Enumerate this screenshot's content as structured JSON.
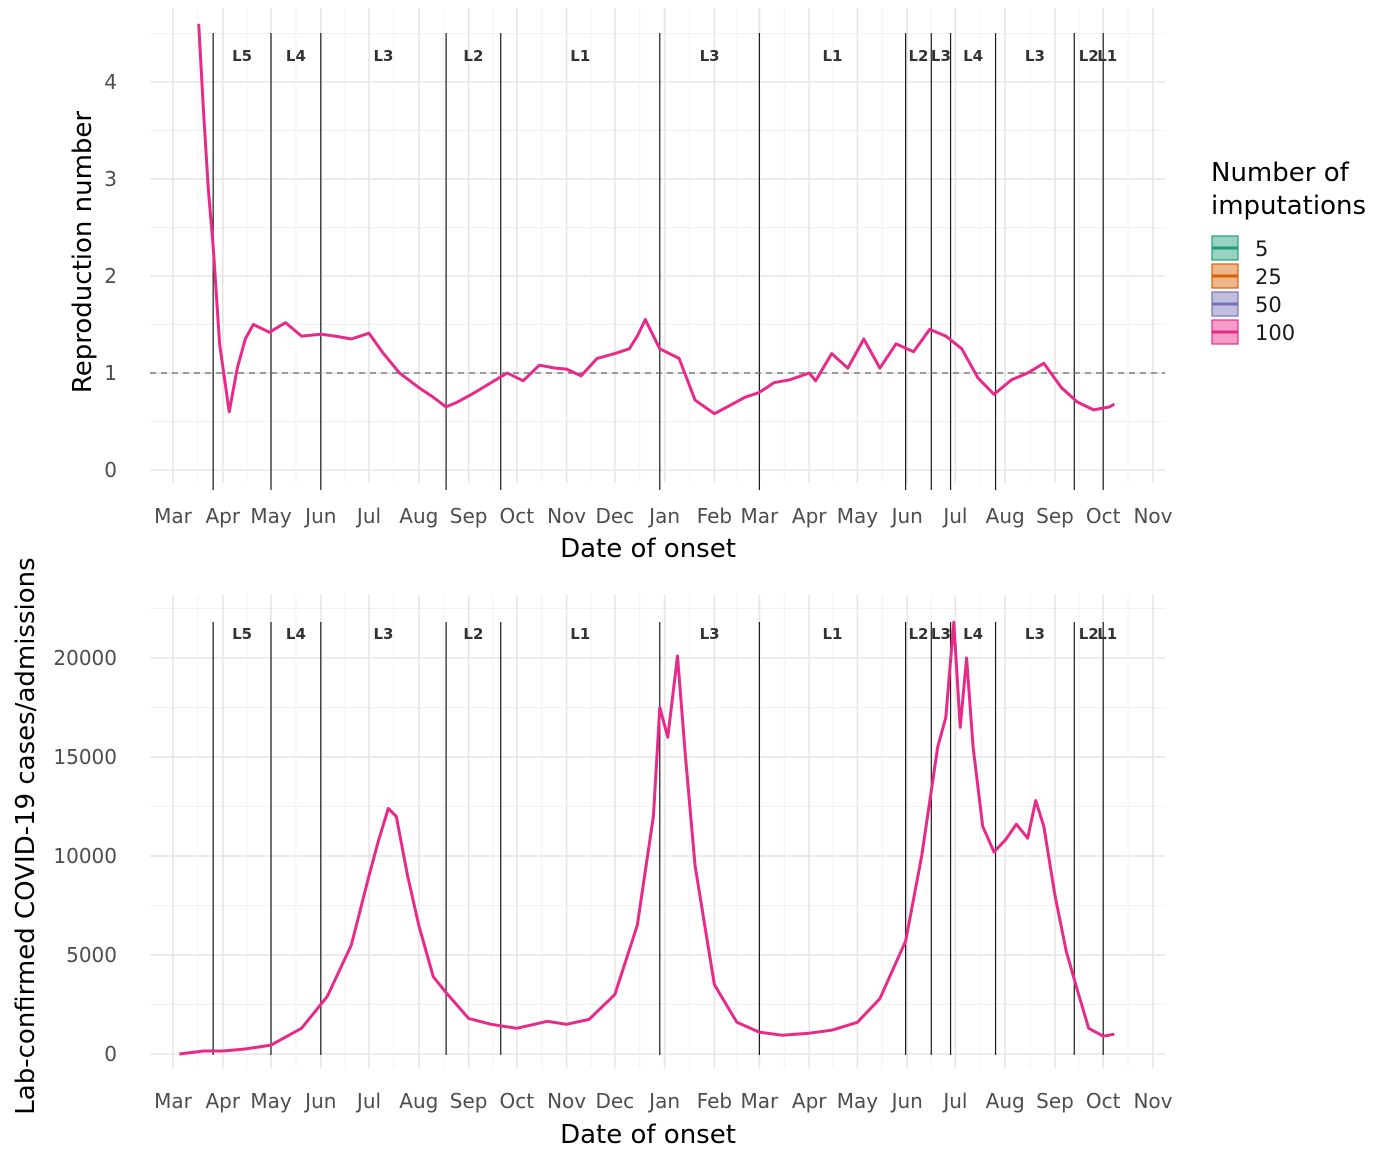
{
  "legend": {
    "title_line1": "Number of",
    "title_line2": "imputations",
    "items": [
      {
        "label": "5",
        "color": "#1b9e77"
      },
      {
        "label": "25",
        "color": "#d95f02"
      },
      {
        "label": "50",
        "color": "#7570b3"
      },
      {
        "label": "100",
        "color": "#e7298a"
      }
    ]
  },
  "chart_data": [
    {
      "type": "line",
      "xlabel": "Date of onset",
      "ylabel": "Reproduction number",
      "x_ticks": [
        "Mar",
        "Apr",
        "May",
        "Jun",
        "Jul",
        "Aug",
        "Sep",
        "Oct",
        "Nov",
        "Dec",
        "Jan",
        "Feb",
        "Mar",
        "Apr",
        "May",
        "Jun",
        "Jul",
        "Aug",
        "Sep",
        "Oct",
        "Nov"
      ],
      "y_ticks": [
        "0",
        "1",
        "2",
        "3",
        "4"
      ],
      "ylim": [
        -0.1,
        4.6
      ],
      "reference_line": {
        "y": 1,
        "style": "dashed"
      },
      "regions": [
        {
          "label": "L5",
          "start": "2020-03-26",
          "end": "2020-05-01"
        },
        {
          "label": "L4",
          "start": "2020-05-01",
          "end": "2020-06-01"
        },
        {
          "label": "L3",
          "start": "2020-06-01",
          "end": "2020-08-18"
        },
        {
          "label": "L2",
          "start": "2020-08-18",
          "end": "2020-09-21"
        },
        {
          "label": "L1",
          "start": "2020-09-21",
          "end": "2020-12-29"
        },
        {
          "label": "L3",
          "start": "2020-12-29",
          "end": "2021-03-01"
        },
        {
          "label": "L1",
          "start": "2021-03-01",
          "end": "2021-05-31"
        },
        {
          "label": "L2",
          "start": "2021-05-31",
          "end": "2021-06-16"
        },
        {
          "label": "L3",
          "start": "2021-06-16",
          "end": "2021-06-28"
        },
        {
          "label": "L4",
          "start": "2021-06-28",
          "end": "2021-07-26"
        },
        {
          "label": "L3",
          "start": "2021-07-26",
          "end": "2021-09-13"
        },
        {
          "label": "L2",
          "start": "2021-09-13",
          "end": "2021-10-01"
        },
        {
          "label": "L1",
          "start": "2021-10-01",
          "end": "2021-10-06"
        }
      ],
      "series": [
        {
          "name": "100",
          "color": "#e7298a",
          "x": [
            "2020-03-17",
            "2020-03-20",
            "2020-03-23",
            "2020-03-26",
            "2020-03-30",
            "2020-04-05",
            "2020-04-10",
            "2020-04-15",
            "2020-04-20",
            "2020-04-30",
            "2020-05-10",
            "2020-05-20",
            "2020-06-01",
            "2020-06-10",
            "2020-06-20",
            "2020-07-01",
            "2020-07-10",
            "2020-07-20",
            "2020-08-01",
            "2020-08-10",
            "2020-08-18",
            "2020-08-25",
            "2020-09-05",
            "2020-09-15",
            "2020-09-25",
            "2020-10-05",
            "2020-10-15",
            "2020-10-25",
            "2020-11-01",
            "2020-11-10",
            "2020-11-20",
            "2020-12-01",
            "2020-12-10",
            "2020-12-15",
            "2020-12-20",
            "2020-12-29",
            "2021-01-10",
            "2021-01-20",
            "2021-02-01",
            "2021-02-10",
            "2021-02-20",
            "2021-03-01",
            "2021-03-10",
            "2021-03-20",
            "2021-04-01",
            "2021-04-05",
            "2021-04-15",
            "2021-04-25",
            "2021-05-05",
            "2021-05-15",
            "2021-05-25",
            "2021-06-05",
            "2021-06-15",
            "2021-06-25",
            "2021-07-05",
            "2021-07-15",
            "2021-07-25",
            "2021-08-05",
            "2021-08-15",
            "2021-08-25",
            "2021-09-05",
            "2021-09-15",
            "2021-09-25",
            "2021-10-05",
            "2021-10-08"
          ],
          "y": [
            4.6,
            3.7,
            2.9,
            2.3,
            1.3,
            0.6,
            1.05,
            1.35,
            1.5,
            1.42,
            1.52,
            1.38,
            1.4,
            1.38,
            1.35,
            1.41,
            1.2,
            1.0,
            0.85,
            0.75,
            0.65,
            0.7,
            0.8,
            0.9,
            1.0,
            0.92,
            1.08,
            1.05,
            1.04,
            0.97,
            1.15,
            1.2,
            1.25,
            1.38,
            1.55,
            1.25,
            1.15,
            0.72,
            0.58,
            0.66,
            0.75,
            0.8,
            0.9,
            0.93,
            1.0,
            0.92,
            1.2,
            1.05,
            1.35,
            1.05,
            1.3,
            1.22,
            1.45,
            1.38,
            1.25,
            0.95,
            0.78,
            0.93,
            1.0,
            1.1,
            0.85,
            0.7,
            0.62,
            0.65,
            0.68
          ]
        }
      ]
    },
    {
      "type": "line",
      "xlabel": "Date of onset",
      "ylabel": "Lab-confirmed COVID-19 cases/admissions",
      "x_ticks": [
        "Mar",
        "Apr",
        "May",
        "Jun",
        "Jul",
        "Aug",
        "Sep",
        "Oct",
        "Nov",
        "Dec",
        "Jan",
        "Feb",
        "Mar",
        "Apr",
        "May",
        "Jun",
        "Jul",
        "Aug",
        "Sep",
        "Oct",
        "Nov"
      ],
      "y_ticks": [
        "0",
        "5000",
        "10000",
        "15000",
        "20000"
      ],
      "ylim": [
        -500,
        23000
      ],
      "regions": [
        {
          "label": "L5",
          "start": "2020-03-26",
          "end": "2020-05-01"
        },
        {
          "label": "L4",
          "start": "2020-05-01",
          "end": "2020-06-01"
        },
        {
          "label": "L3",
          "start": "2020-06-01",
          "end": "2020-08-18"
        },
        {
          "label": "L2",
          "start": "2020-08-18",
          "end": "2020-09-21"
        },
        {
          "label": "L1",
          "start": "2020-09-21",
          "end": "2020-12-29"
        },
        {
          "label": "L3",
          "start": "2020-12-29",
          "end": "2021-03-01"
        },
        {
          "label": "L1",
          "start": "2021-03-01",
          "end": "2021-05-31"
        },
        {
          "label": "L2",
          "start": "2021-05-31",
          "end": "2021-06-16"
        },
        {
          "label": "L3",
          "start": "2021-06-16",
          "end": "2021-06-28"
        },
        {
          "label": "L4",
          "start": "2021-06-28",
          "end": "2021-07-26"
        },
        {
          "label": "L3",
          "start": "2021-07-26",
          "end": "2021-09-13"
        },
        {
          "label": "L2",
          "start": "2021-09-13",
          "end": "2021-10-01"
        },
        {
          "label": "L1",
          "start": "2021-10-01",
          "end": "2021-10-06"
        }
      ],
      "series": [
        {
          "name": "100",
          "color": "#e7298a",
          "x": [
            "2020-03-05",
            "2020-03-20",
            "2020-04-01",
            "2020-04-15",
            "2020-05-01",
            "2020-05-20",
            "2020-06-05",
            "2020-06-20",
            "2020-07-01",
            "2020-07-07",
            "2020-07-13",
            "2020-07-18",
            "2020-07-25",
            "2020-08-01",
            "2020-08-10",
            "2020-08-18",
            "2020-09-01",
            "2020-09-15",
            "2020-10-01",
            "2020-10-20",
            "2020-11-01",
            "2020-11-15",
            "2020-12-01",
            "2020-12-15",
            "2020-12-25",
            "2020-12-29",
            "2021-01-03",
            "2021-01-09",
            "2021-01-14",
            "2021-01-20",
            "2021-02-01",
            "2021-02-15",
            "2021-03-01",
            "2021-03-15",
            "2021-04-01",
            "2021-04-15",
            "2021-05-01",
            "2021-05-15",
            "2021-05-31",
            "2021-06-10",
            "2021-06-20",
            "2021-06-25",
            "2021-06-30",
            "2021-07-04",
            "2021-07-08",
            "2021-07-12",
            "2021-07-18",
            "2021-07-25",
            "2021-08-01",
            "2021-08-08",
            "2021-08-15",
            "2021-08-20",
            "2021-08-25",
            "2021-09-01",
            "2021-09-08",
            "2021-09-15",
            "2021-09-22",
            "2021-10-01",
            "2021-10-08"
          ],
          "y": [
            0,
            150,
            150,
            250,
            450,
            1300,
            2900,
            5500,
            9000,
            10800,
            12400,
            12000,
            9000,
            6500,
            3900,
            3100,
            1800,
            1500,
            1300,
            1650,
            1500,
            1750,
            3000,
            6500,
            12000,
            17500,
            16000,
            20100,
            15000,
            9500,
            3500,
            1600,
            1100,
            950,
            1050,
            1200,
            1600,
            2800,
            5700,
            10000,
            15500,
            17000,
            21800,
            16500,
            20000,
            15500,
            11500,
            10200,
            10800,
            11600,
            10900,
            12800,
            11500,
            8000,
            5200,
            3200,
            1300,
            900,
            1000
          ]
        }
      ]
    }
  ]
}
